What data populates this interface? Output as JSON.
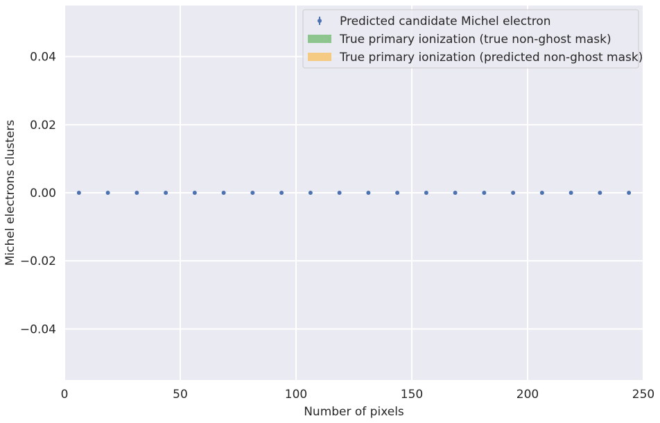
{
  "chart_data": {
    "type": "scatter",
    "title": "",
    "xlabel": "Number of pixels",
    "ylabel": "Michel electrons clusters",
    "xlim": [
      0,
      250
    ],
    "ylim": [
      -0.055,
      0.055
    ],
    "x_ticks": [
      0,
      50,
      100,
      150,
      200,
      250
    ],
    "x_tick_labels": [
      "0",
      "50",
      "100",
      "150",
      "200",
      "250"
    ],
    "y_ticks": [
      -0.04,
      -0.02,
      0.0,
      0.02,
      0.04
    ],
    "y_tick_labels": [
      "−0.04",
      "−0.02",
      "0.00",
      "0.02",
      "0.04"
    ],
    "grid": true,
    "legend_position": "top-right",
    "legend_entries": [
      {
        "label": "Predicted candidate Michel electron",
        "marker": "errorbar-point",
        "color": "#4c72b0"
      },
      {
        "label": "True primary ionization (true non-ghost mask)",
        "marker": "patch",
        "color": "#8ec48e"
      },
      {
        "label": "True primary ionization (predicted non-ghost mask)",
        "marker": "patch",
        "color": "#f5cb84"
      }
    ],
    "series": [
      {
        "name": "Predicted candidate Michel electron",
        "color": "#4c72b0",
        "x": [
          6.25,
          18.75,
          31.25,
          43.75,
          56.25,
          68.75,
          81.25,
          93.75,
          106.25,
          118.75,
          131.25,
          143.75,
          156.25,
          168.75,
          181.25,
          193.75,
          206.25,
          218.75,
          231.25,
          243.75
        ],
        "y": [
          0,
          0,
          0,
          0,
          0,
          0,
          0,
          0,
          0,
          0,
          0,
          0,
          0,
          0,
          0,
          0,
          0,
          0,
          0,
          0
        ]
      }
    ],
    "colors": {
      "plot_bg": "#eaeaf2",
      "grid": "#ffffff",
      "text": "#262626"
    }
  }
}
